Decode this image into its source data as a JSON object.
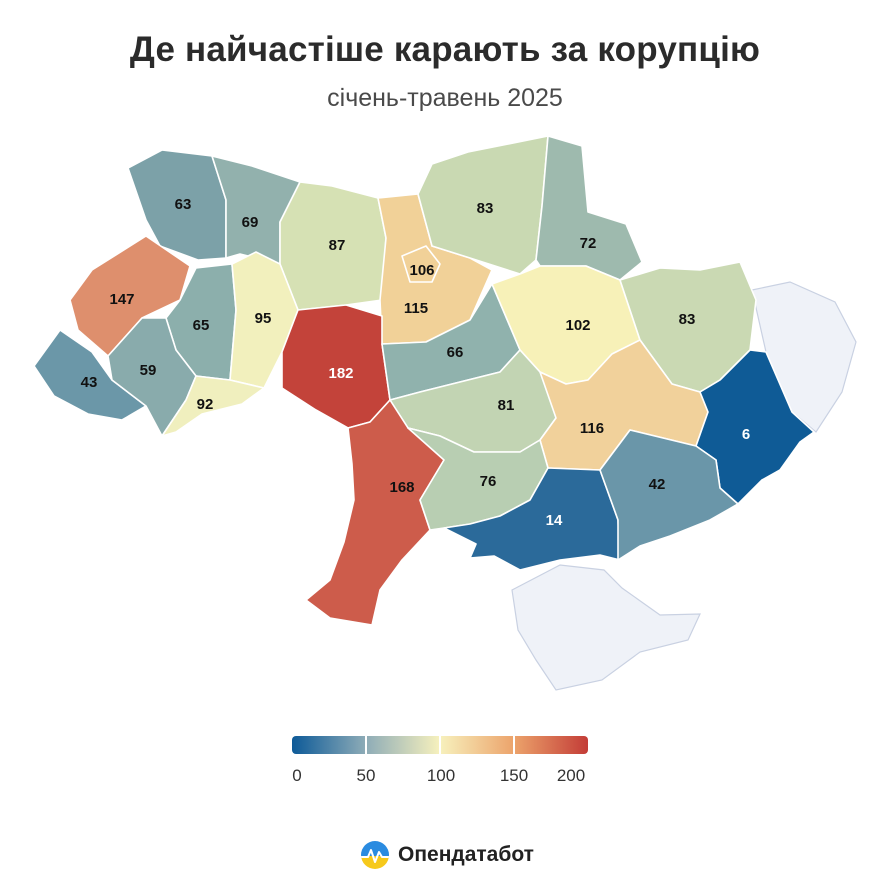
{
  "header": {
    "title": "Де найчастіше карають за корупцію",
    "subtitle": "січень-травень 2025"
  },
  "legend": {
    "ticks": [
      "0",
      "50",
      "100",
      "150",
      "200"
    ],
    "colors": [
      "#0d5a98",
      "#8eacb7",
      "#f7f1bd",
      "#eca36b",
      "#c33c37"
    ]
  },
  "brand": {
    "name": "Опендатабот"
  },
  "regions": [
    {
      "id": "volyn",
      "value": "63",
      "color": "#7ca1a8"
    },
    {
      "id": "rivne",
      "value": "69",
      "color": "#92b1ad"
    },
    {
      "id": "zhytomyr",
      "value": "87",
      "color": "#d6e1b4"
    },
    {
      "id": "kyiv-oblast",
      "value": "115",
      "color": "#f1d198"
    },
    {
      "id": "kyiv-city",
      "value": "106",
      "color": "#f1d198"
    },
    {
      "id": "chernihiv",
      "value": "83",
      "color": "#c9d9b2"
    },
    {
      "id": "sumy",
      "value": "72",
      "color": "#9ebaae"
    },
    {
      "id": "lviv",
      "value": "147",
      "color": "#de8f6d"
    },
    {
      "id": "ternopil",
      "value": "65",
      "color": "#8cafac"
    },
    {
      "id": "khmelnytskyi",
      "value": "95",
      "color": "#f2f0bd"
    },
    {
      "id": "vinnytsia",
      "value": "182",
      "color": "#c3433a"
    },
    {
      "id": "cherkasy",
      "value": "66",
      "color": "#90b2ad"
    },
    {
      "id": "poltava",
      "value": "102",
      "color": "#f7f1b8"
    },
    {
      "id": "kharkiv",
      "value": "83",
      "color": "#cad9b3"
    },
    {
      "id": "zakarpattia",
      "value": "43",
      "color": "#6b97a8"
    },
    {
      "id": "ivano-frankivsk",
      "value": "59",
      "color": "#89abac"
    },
    {
      "id": "chernivtsi",
      "value": "92",
      "color": "#f0efbe"
    },
    {
      "id": "kirovohrad",
      "value": "81",
      "color": "#c2d4b3"
    },
    {
      "id": "dnipro",
      "value": "116",
      "color": "#f1d19b"
    },
    {
      "id": "donetsk",
      "value": "6",
      "color": "#0f5b96"
    },
    {
      "id": "odesa",
      "value": "168",
      "color": "#cd5c4b"
    },
    {
      "id": "mykolaiv",
      "value": "76",
      "color": "#b8ceb2"
    },
    {
      "id": "kherson",
      "value": "14",
      "color": "#2b6a9a"
    },
    {
      "id": "zaporizhzhia",
      "value": "42",
      "color": "#6a96a9"
    }
  ]
}
